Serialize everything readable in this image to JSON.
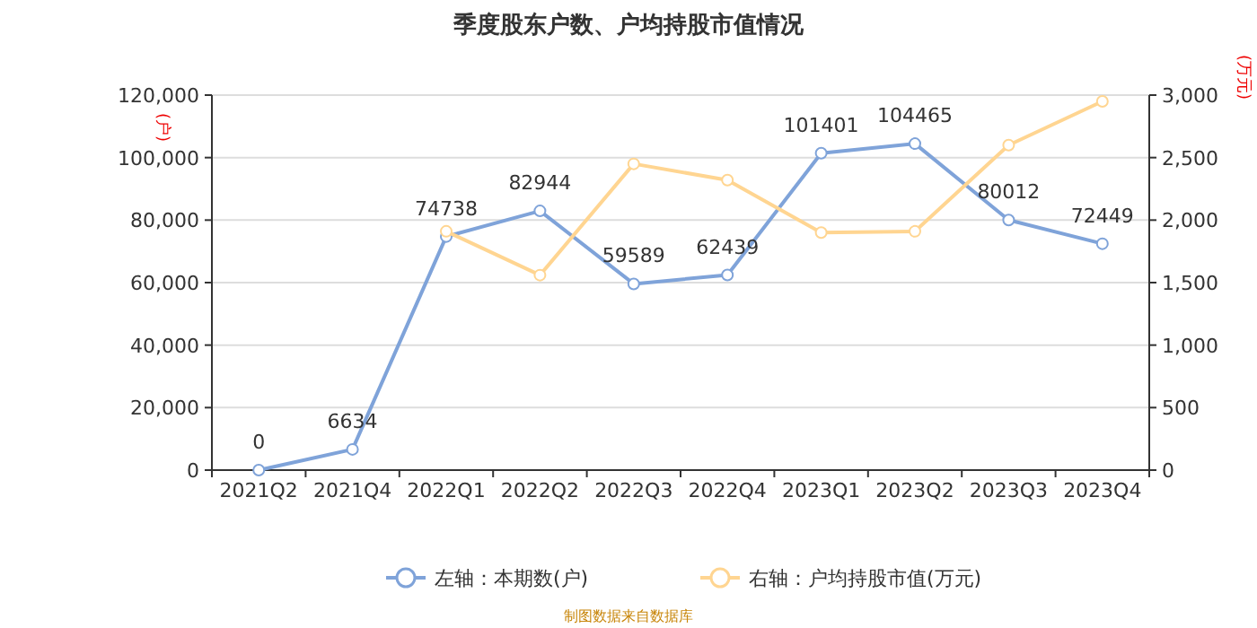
{
  "chart_data": {
    "type": "line",
    "title": "季度股东户数、户均持股市值情况",
    "categories": [
      "2021Q2",
      "2021Q4",
      "2022Q1",
      "2022Q2",
      "2022Q3",
      "2022Q4",
      "2023Q1",
      "2023Q2",
      "2023Q3",
      "2023Q4"
    ],
    "series": [
      {
        "name": "左轴：本期数(户)",
        "color": "#7f a3d9",
        "values": [
          0,
          6634,
          74738,
          82944,
          59589,
          62439,
          101401,
          104465,
          80012,
          72449
        ],
        "value_labels": [
          "0",
          "6634",
          "74738",
          "82944",
          "59589",
          "62439",
          "101401",
          "104465",
          "80012",
          "72449"
        ]
      },
      {
        "name": "右轴：户均持股市值(万元)",
        "color": "#ffd591",
        "axis": "y2",
        "values": [
          null,
          null,
          1910,
          1560,
          2450,
          2320,
          1900,
          1910,
          2600,
          2950
        ]
      }
    ],
    "ylabel": "(户)",
    "y2label": "(万元)",
    "ylim": [
      0,
      120000
    ],
    "yticks": [
      {
        "value": 0,
        "label": "0"
      },
      {
        "value": 20000,
        "label": "20,000"
      },
      {
        "value": 40000,
        "label": "40,000"
      },
      {
        "value": 60000,
        "label": "60,000"
      },
      {
        "value": 80000,
        "label": "80,000"
      },
      {
        "value": 100000,
        "label": "100,000"
      },
      {
        "value": 120000,
        "label": "120,000"
      }
    ],
    "y2lim": [
      0,
      3000
    ],
    "y2ticks": [
      0,
      500,
      {
        "value": 1000,
        "label": "1,000"
      },
      {
        "value": 1500,
        "label": "1,500"
      },
      {
        "value": 2000,
        "label": "2,000"
      },
      {
        "value": 2500,
        "label": "2,500"
      },
      {
        "value": 3000,
        "label": "3,000"
      }
    ],
    "grid": "y",
    "marker": "circle",
    "line_style": "solid",
    "legend": "bottom",
    "annotations": [
      "制图数据来自数据库"
    ]
  }
}
